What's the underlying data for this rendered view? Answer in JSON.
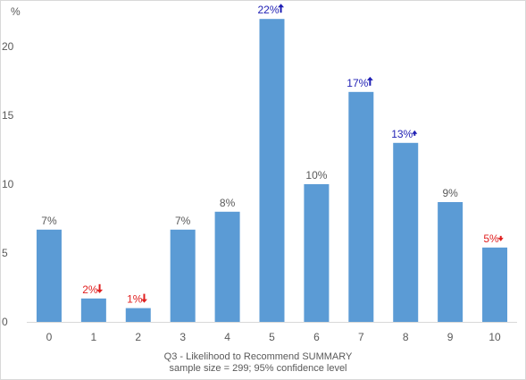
{
  "chart_data": {
    "type": "bar",
    "categories": [
      "0",
      "1",
      "2",
      "3",
      "4",
      "5",
      "6",
      "7",
      "8",
      "9",
      "10"
    ],
    "values": [
      6.7,
      1.7,
      1.0,
      6.7,
      8.0,
      22.0,
      10.0,
      16.7,
      13.0,
      8.7,
      5.4
    ],
    "data_labels": [
      "7%",
      "2%",
      "1%",
      "7%",
      "8%",
      "22%",
      "10%",
      "17%",
      "13%",
      "9%",
      "5%"
    ],
    "significance": [
      "none",
      "down",
      "down",
      "none",
      "none",
      "up",
      "none",
      "up",
      "up-small",
      "none",
      "down-small"
    ],
    "label_colors": {
      "none": "#595959",
      "up": "#1f1fb4",
      "down": "#e02020"
    },
    "bar_color": "#5b9bd5",
    "ylim": [
      0,
      22
    ],
    "yticks": [
      0,
      5,
      10,
      15,
      20
    ],
    "ylabel": "%",
    "xlabel": "Q3 - Likelihood to Recommend SUMMARY",
    "subtitle": "sample size = 299; 95% confidence level",
    "grid": false
  }
}
